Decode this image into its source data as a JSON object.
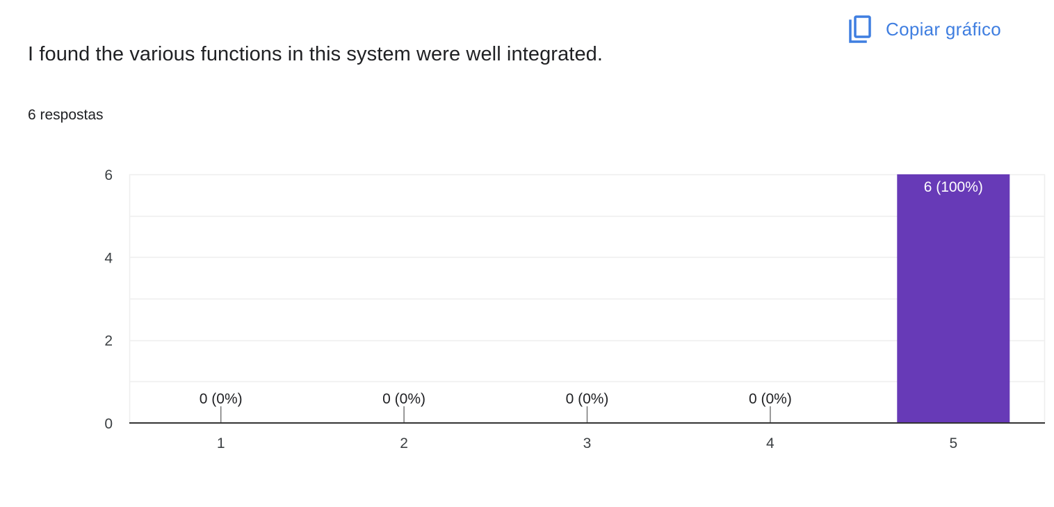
{
  "header": {
    "copy_label": "Copiar gráfico",
    "copy_icon": "copy-icon"
  },
  "question": {
    "title": "I found the various functions in this system were well integrated.",
    "responses": "6 respostas"
  },
  "colors": {
    "bar": "#673ab7",
    "accent": "#3f7ee0",
    "grid": "#eeeeee",
    "axis": "#333333"
  },
  "chart_data": {
    "type": "bar",
    "categories": [
      "1",
      "2",
      "3",
      "4",
      "5"
    ],
    "values": [
      0,
      0,
      0,
      0,
      6
    ],
    "data_labels": [
      "0 (0%)",
      "0 (0%)",
      "0 (0%)",
      "0 (0%)",
      "6 (100%)"
    ],
    "y_ticks": [
      0,
      2,
      4,
      6
    ],
    "ylim": [
      0,
      6
    ],
    "grid": true,
    "title": "",
    "xlabel": "",
    "ylabel": ""
  }
}
